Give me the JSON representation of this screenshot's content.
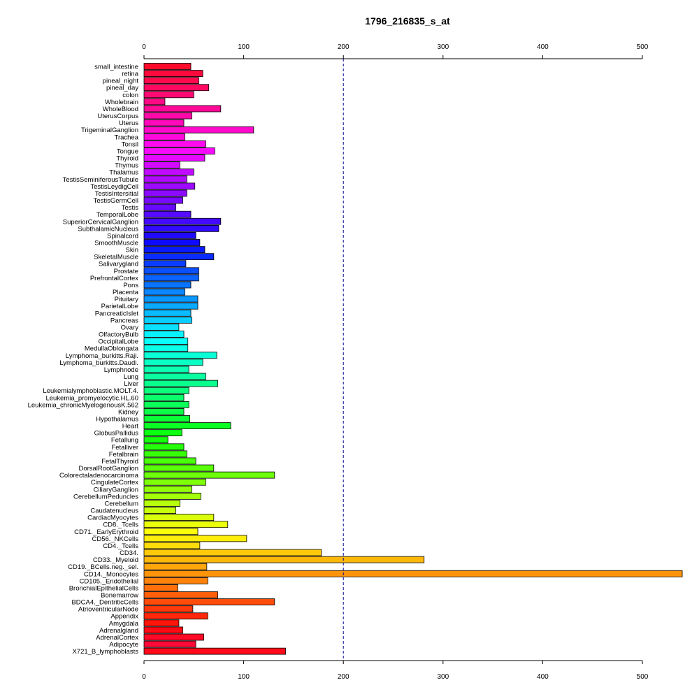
{
  "chart_data": {
    "type": "bar",
    "orientation": "horizontal",
    "title": "1796_216835_s_at",
    "xlabel": "",
    "ylabel": "",
    "xlim": [
      0,
      500
    ],
    "x_ticks": [
      0,
      100,
      200,
      300,
      400,
      500
    ],
    "x_tick_labels": [
      "0",
      "100",
      "200",
      "300",
      "400",
      "500"
    ],
    "axis_positions": [
      "top",
      "bottom"
    ],
    "reference_line": {
      "value": 200,
      "style": "dashed",
      "color": "#00008b"
    },
    "grid": false,
    "legend": "none",
    "bar_outline_color": "#000000",
    "categories": [
      "small_intestine",
      "retina",
      "pineal_night",
      "pineal_day",
      "colon",
      "Wholebrain",
      "WholeBlood",
      "UterusCorpus",
      "Uterus",
      "TrigeminalGanglion",
      "Trachea",
      "Tonsil",
      "Tongue",
      "Thyroid",
      "Thymus",
      "Thalamus",
      "TestisSeminiferousTubule",
      "TestisLeydigCell",
      "TestisIntersitial",
      "TestisGermCell",
      "Testis",
      "TemporalLobe",
      "SuperiorCervicalGanglion",
      "SubthalamicNucleus",
      "Spinalcord",
      "SmoothMuscle",
      "Skin",
      "SkeletalMuscle",
      "Salivarygland",
      "Prostate",
      "PrefrontalCortex",
      "Pons",
      "Placenta",
      "Pituitary",
      "ParietalLobe",
      "PancreaticIslet",
      "Pancreas",
      "Ovary",
      "OlfactoryBulb",
      "OccipitalLobe",
      "MedullaOblongata",
      "Lymphoma_burkitts.Raji.",
      "Lymphoma_burkitts.Daudi.",
      "Lymphnode",
      "Lung",
      "Liver",
      "Leukemialymphoblastic.MOLT.4.",
      "Leukemia_promyelocytic.HL.60",
      "Leukemia_chronicMyelogenousK.562",
      "Kidney",
      "Hypothalamus",
      "Heart",
      "GlobusPallidus",
      "Fetallung",
      "Fetalliver",
      "Fetalbrain",
      "FetalThyroid",
      "DorsalRootGanglion",
      "Colorectaladenocarcinoma",
      "CingulateCortex",
      "CiliaryGanglion",
      "CerebellumPeduncles",
      "Cerebellum",
      "Caudatenucleus",
      "CardiacMyocytes",
      "CD8._Tcells",
      "CD71._EarlyErythroid",
      "CD56._NKCells",
      "CD4._Tcells",
      "CD34.",
      "CD33._Myeloid",
      "CD19._BCells.neg._sel.",
      "CD14._Monocytes",
      "CD105._Endothelial",
      "BronchialEpithelialCells",
      "Bonemarrow",
      "BDCA4._DentriticCells",
      "AtrioventricularNode",
      "Appendix",
      "Amygdala",
      "Adrenalgland",
      "AdrenalCortex",
      "Adipocyte",
      "X721_B_lymphoblasts"
    ],
    "values": [
      47,
      59,
      55,
      65,
      50,
      21,
      77,
      48,
      40,
      110,
      41,
      62,
      71,
      61,
      36,
      50,
      43,
      51,
      43,
      39,
      32,
      47,
      77,
      75,
      52,
      56,
      61,
      70,
      42,
      55,
      55,
      47,
      41,
      54,
      54,
      47,
      48,
      35,
      40,
      44,
      44,
      73,
      59,
      45,
      62,
      74,
      45,
      40,
      45,
      40,
      46,
      87,
      38,
      24,
      40,
      43,
      52,
      70,
      131,
      62,
      48,
      57,
      36,
      32,
      70,
      84,
      54,
      103,
      56,
      178,
      281,
      63,
      540,
      64,
      34,
      74,
      131,
      49,
      64,
      35,
      39,
      60,
      52,
      142
    ],
    "colors": [
      "#ff0a2a",
      "#ff0a3c",
      "#ff0a4e",
      "#ff0a60",
      "#ff0a72",
      "#ff0a84",
      "#ff0a96",
      "#ff0aa8",
      "#ff0aba",
      "#ff0acc",
      "#ff0add",
      "#ff0aef",
      "#f80aff",
      "#e60aff",
      "#d40aff",
      "#c20aff",
      "#b00aff",
      "#9e0aff",
      "#8c0aff",
      "#7a0aff",
      "#680aff",
      "#560aff",
      "#440aff",
      "#320aff",
      "#200aff",
      "#0e0aff",
      "#0a1aff",
      "#0a2cff",
      "#0a3eff",
      "#0a50ff",
      "#0a62ff",
      "#0a74ff",
      "#0a86ff",
      "#0a98ff",
      "#0aaaff",
      "#0abcff",
      "#0aceff",
      "#0ae0ff",
      "#0af2ff",
      "#0afffa",
      "#0affe8",
      "#0affd6",
      "#0affc4",
      "#0affb2",
      "#0affa0",
      "#0aff8e",
      "#0aff7c",
      "#0aff6a",
      "#0aff58",
      "#0aff46",
      "#0aff34",
      "#0aff22",
      "#0aff10",
      "#14ff0a",
      "#26ff0a",
      "#38ff0a",
      "#4aff0a",
      "#5cff0a",
      "#6eff0a",
      "#80ff0a",
      "#92ff0a",
      "#a4ff0a",
      "#b6ff0a",
      "#c8ff0a",
      "#daff0a",
      "#ecff0a",
      "#feff0a",
      "#ffee0a",
      "#ffdc0a",
      "#ffca0a",
      "#ffb80a",
      "#ffa60a",
      "#ff940a",
      "#ff820a",
      "#ff700a",
      "#ff5e0a",
      "#ff4c0a",
      "#ff3a0a",
      "#ff280a",
      "#ff160a",
      "#ff0a14",
      "#ff0a26",
      "#ff0a38",
      "#ff0a1a"
    ]
  }
}
